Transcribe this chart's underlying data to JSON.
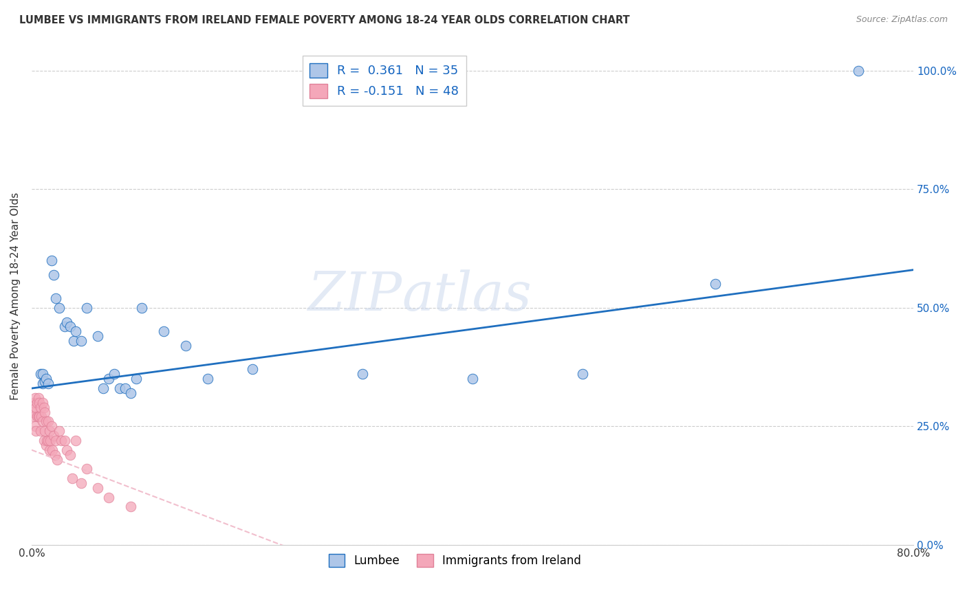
{
  "title": "LUMBEE VS IMMIGRANTS FROM IRELAND FEMALE POVERTY AMONG 18-24 YEAR OLDS CORRELATION CHART",
  "source": "Source: ZipAtlas.com",
  "ylabel": "Female Poverty Among 18-24 Year Olds",
  "xlabel_lumbee": "Lumbee",
  "xlabel_ireland": "Immigrants from Ireland",
  "xlim": [
    0.0,
    0.8
  ],
  "ylim": [
    0.0,
    1.05
  ],
  "yticks": [
    0.0,
    0.25,
    0.5,
    0.75,
    1.0
  ],
  "ytick_labels": [
    "0.0%",
    "25.0%",
    "50.0%",
    "75.0%",
    "100.0%"
  ],
  "lumbee_R": 0.361,
  "lumbee_N": 35,
  "ireland_R": -0.151,
  "ireland_N": 48,
  "lumbee_color": "#aec6e8",
  "ireland_color": "#f4a7b9",
  "lumbee_line_color": "#1f6fbf",
  "ireland_line_color": "#f0b8c8",
  "watermark_zip": "ZIP",
  "watermark_atlas": "atlas",
  "lumbee_x": [
    0.008,
    0.01,
    0.01,
    0.012,
    0.013,
    0.015,
    0.018,
    0.02,
    0.022,
    0.025,
    0.03,
    0.032,
    0.035,
    0.038,
    0.04,
    0.045,
    0.05,
    0.06,
    0.065,
    0.07,
    0.075,
    0.08,
    0.085,
    0.09,
    0.095,
    0.1,
    0.12,
    0.14,
    0.16,
    0.2,
    0.3,
    0.4,
    0.5,
    0.62,
    0.75
  ],
  "lumbee_y": [
    0.36,
    0.36,
    0.34,
    0.345,
    0.35,
    0.34,
    0.6,
    0.57,
    0.52,
    0.5,
    0.46,
    0.47,
    0.46,
    0.43,
    0.45,
    0.43,
    0.5,
    0.44,
    0.33,
    0.35,
    0.36,
    0.33,
    0.33,
    0.32,
    0.35,
    0.5,
    0.45,
    0.42,
    0.35,
    0.37,
    0.36,
    0.35,
    0.36,
    0.55,
    1.0
  ],
  "ireland_x": [
    0.001,
    0.002,
    0.002,
    0.003,
    0.003,
    0.004,
    0.004,
    0.005,
    0.005,
    0.006,
    0.006,
    0.007,
    0.007,
    0.008,
    0.008,
    0.009,
    0.01,
    0.01,
    0.011,
    0.011,
    0.012,
    0.012,
    0.013,
    0.013,
    0.014,
    0.015,
    0.015,
    0.016,
    0.016,
    0.017,
    0.018,
    0.019,
    0.02,
    0.021,
    0.022,
    0.023,
    0.025,
    0.027,
    0.03,
    0.032,
    0.035,
    0.037,
    0.04,
    0.045,
    0.05,
    0.06,
    0.07,
    0.09
  ],
  "ireland_y": [
    0.28,
    0.3,
    0.27,
    0.31,
    0.25,
    0.29,
    0.24,
    0.3,
    0.27,
    0.31,
    0.27,
    0.3,
    0.27,
    0.29,
    0.24,
    0.27,
    0.3,
    0.26,
    0.29,
    0.22,
    0.28,
    0.24,
    0.26,
    0.21,
    0.22,
    0.26,
    0.22,
    0.24,
    0.2,
    0.22,
    0.25,
    0.2,
    0.23,
    0.19,
    0.22,
    0.18,
    0.24,
    0.22,
    0.22,
    0.2,
    0.19,
    0.14,
    0.22,
    0.13,
    0.16,
    0.12,
    0.1,
    0.08
  ]
}
